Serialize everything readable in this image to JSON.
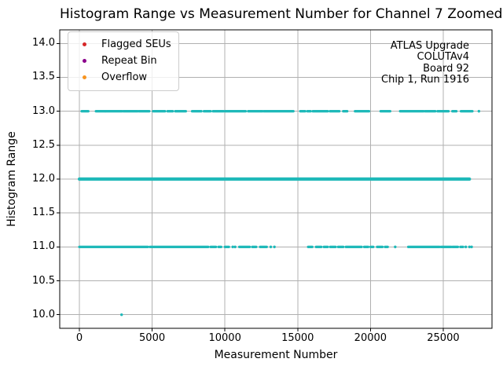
{
  "chart_data": {
    "type": "scatter",
    "title": "Histogram Range vs Measurement Number for Channel 7 Zoomed",
    "xlabel": "Measurement Number",
    "ylabel": "Histogram Range",
    "xlim": [
      -1350,
      28350
    ],
    "ylim": [
      9.8,
      14.2
    ],
    "grid": true,
    "xticks": [
      {
        "value": 0,
        "label": "0"
      },
      {
        "value": 5000,
        "label": "5000"
      },
      {
        "value": 10000,
        "label": "10000"
      },
      {
        "value": 15000,
        "label": "15000"
      },
      {
        "value": 20000,
        "label": "20000"
      },
      {
        "value": 25000,
        "label": "25000"
      }
    ],
    "yticks": [
      {
        "value": 10.0,
        "label": "10.0"
      },
      {
        "value": 10.5,
        "label": "10.5"
      },
      {
        "value": 11.0,
        "label": "11.0"
      },
      {
        "value": 11.5,
        "label": "11.5"
      },
      {
        "value": 12.0,
        "label": "12.0"
      },
      {
        "value": 12.5,
        "label": "12.5"
      },
      {
        "value": 13.0,
        "label": "13.0"
      },
      {
        "value": 13.5,
        "label": "13.5"
      },
      {
        "value": 14.0,
        "label": "14.0"
      }
    ],
    "legend": {
      "position": "upper-left",
      "entries": [
        {
          "label": "Flagged SEUs",
          "color": "#d62728"
        },
        {
          "label": "Repeat Bin",
          "color": "#8b008b"
        },
        {
          "label": "Overflow",
          "color": "#f79420"
        }
      ]
    },
    "annotation": {
      "position": "upper-right",
      "lines": [
        "ATLAS Upgrade",
        "COLUTAv4",
        "Board 92",
        "Chip 1, Run 1916"
      ]
    },
    "colors": {
      "marker": "#1fb9b9",
      "grid": "#b0b0b0",
      "spine": "#000000"
    },
    "series": [
      {
        "name": "histogram-range-readings",
        "marker_color": "#1fb9b9",
        "bands": [
          {
            "y": 13,
            "thickness": 3.2,
            "segments": [
              [
                160,
                610
              ],
              [
                1140,
                1770
              ],
              [
                1800,
                2930
              ],
              [
                3020,
                4000
              ],
              [
                4090,
                4800
              ],
              [
                5070,
                5880
              ],
              [
                6060,
                6410
              ],
              [
                6590,
                7310
              ],
              [
                7750,
                8380
              ],
              [
                8560,
                9010
              ],
              [
                9180,
                9900
              ],
              [
                10000,
                11420
              ],
              [
                11600,
                12580
              ],
              [
                12670,
                14700
              ],
              [
                15180,
                15510
              ],
              [
                15670,
                15880
              ],
              [
                16040,
                17060
              ],
              [
                17220,
                17860
              ],
              [
                18130,
                18400
              ],
              [
                18940,
                19900
              ],
              [
                20700,
                21350
              ],
              [
                22040,
                23650
              ],
              [
                23750,
                24450
              ],
              [
                24610,
                25360
              ],
              [
                25630,
                25900
              ],
              [
                26220,
                27000
              ]
            ],
            "points": [
              27450
            ]
          },
          {
            "y": 12,
            "thickness": 4.2,
            "segments": [
              [
                0,
                26800
              ]
            ],
            "points": []
          },
          {
            "y": 11,
            "thickness": 3.2,
            "segments": [
              [
                0,
                4700
              ],
              [
                4850,
                8850
              ],
              [
                9020,
                9380
              ],
              [
                9560,
                9740
              ],
              [
                10000,
                10270
              ],
              [
                10990,
                11700
              ],
              [
                11880,
                12150
              ],
              [
                12420,
                12870
              ],
              [
                15720,
                16000
              ],
              [
                16260,
                16620
              ],
              [
                16800,
                17060
              ],
              [
                17240,
                17600
              ],
              [
                17780,
                18130
              ],
              [
                18310,
                19390
              ],
              [
                19570,
                19840
              ],
              [
                20010,
                20190
              ],
              [
                20460,
                20820
              ],
              [
                21000,
                21180
              ],
              [
                22600,
                24740
              ],
              [
                24840,
                25550
              ],
              [
                25640,
                26000
              ],
              [
                26180,
                26360
              ]
            ],
            "points": [
              10540,
              10700,
              13150,
              13400,
              21700,
              26550,
              26800,
              26950
            ]
          },
          {
            "y": 10,
            "thickness": 3.2,
            "segments": [],
            "points": [
              2900
            ]
          }
        ]
      }
    ]
  }
}
